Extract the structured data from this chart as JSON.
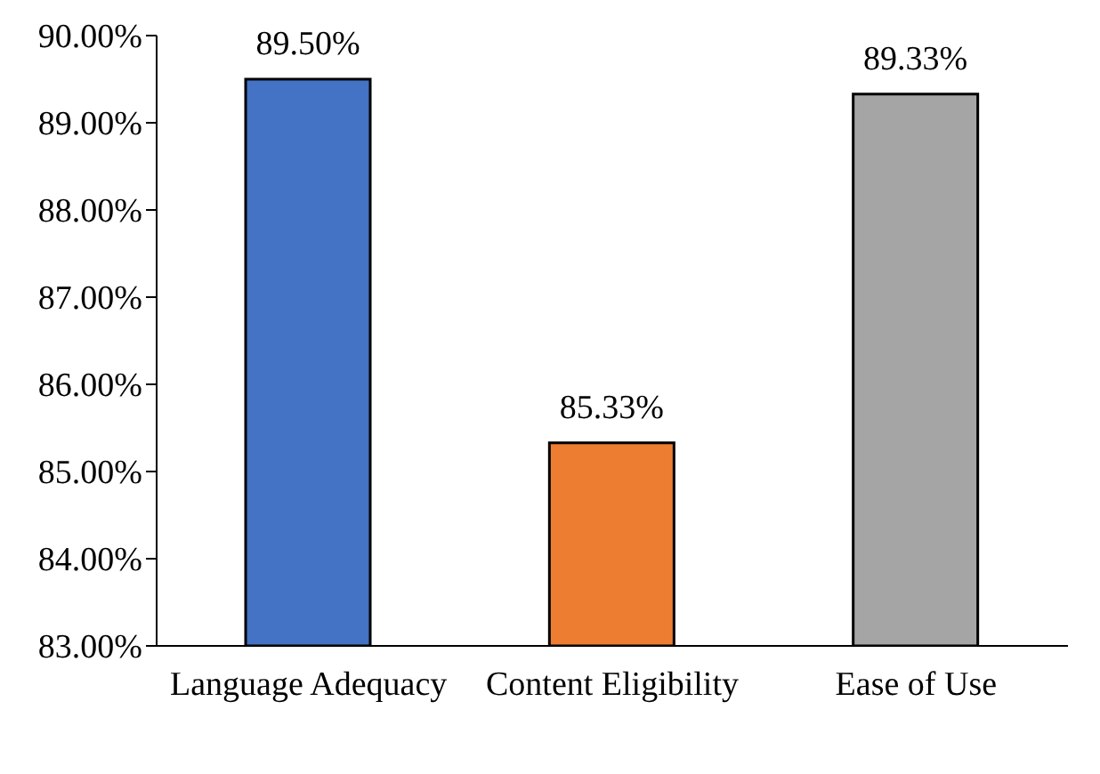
{
  "chart_data": {
    "type": "bar",
    "categories": [
      "Language Adequacy",
      "Content Eligibility",
      "Ease of Use"
    ],
    "values": [
      89.5,
      85.33,
      89.33
    ],
    "colors": [
      "#4472c4",
      "#ed7d31",
      "#a5a5a5"
    ],
    "value_labels": [
      "89.50%",
      "85.33%",
      "89.33%"
    ],
    "ylim": [
      83,
      90
    ],
    "yticks": [
      {
        "value": 83,
        "label": "83.00%"
      },
      {
        "value": 84,
        "label": "84.00%"
      },
      {
        "value": 85,
        "label": "85.00%"
      },
      {
        "value": 86,
        "label": "86.00%"
      },
      {
        "value": 87,
        "label": "87.00%"
      },
      {
        "value": 88,
        "label": "88.00%"
      },
      {
        "value": 89,
        "label": "89.00%"
      },
      {
        "value": 90,
        "label": "90.00%"
      }
    ],
    "grid": false,
    "legend": false
  }
}
